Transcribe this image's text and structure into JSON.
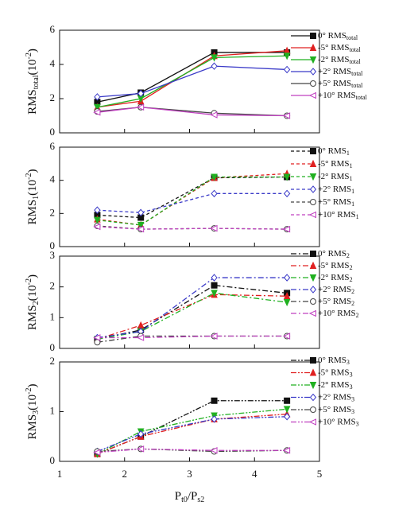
{
  "chart_data": [
    {
      "type": "line",
      "linestyle": "solid",
      "series_subscript": "total",
      "ylabel": [
        "RMS",
        "total",
        "(10",
        "-2",
        ")"
      ],
      "x": [
        1.58,
        2.25,
        3.38,
        4.5
      ],
      "xlim": [
        1,
        5
      ],
      "xticks": [
        1,
        2,
        3,
        4,
        5
      ],
      "ylim": [
        0,
        6
      ],
      "yticks": [
        0,
        2,
        4,
        6
      ],
      "series": [
        {
          "name": "0° RMS",
          "color": "#111111",
          "marker": "square",
          "values": [
            1.8,
            2.35,
            4.7,
            4.7
          ]
        },
        {
          "name": "-5° RMS",
          "color": "#e02020",
          "marker": "triangle-up",
          "values": [
            1.5,
            1.85,
            4.5,
            4.8
          ]
        },
        {
          "name": "-2° RMS",
          "color": "#20b020",
          "marker": "triangle-down",
          "values": [
            1.5,
            2.0,
            4.4,
            4.5
          ]
        },
        {
          "name": "+2° RMS",
          "color": "#3a3ac8",
          "marker": "diamond",
          "values": [
            2.1,
            2.3,
            3.9,
            3.7
          ]
        },
        {
          "name": "+5° RMS",
          "color": "#444444",
          "marker": "circle",
          "values": [
            1.25,
            1.5,
            1.15,
            1.0
          ]
        },
        {
          "name": "+10° RMS",
          "color": "#c040c0",
          "marker": "triangle-left",
          "values": [
            1.2,
            1.5,
            1.05,
            1.0
          ]
        }
      ]
    },
    {
      "type": "line",
      "linestyle": "dashed",
      "series_subscript": "1",
      "ylabel": [
        "RMS",
        "1",
        "(10",
        "-2",
        ")"
      ],
      "x": [
        1.58,
        2.25,
        3.38,
        4.5
      ],
      "xlim": [
        1,
        5
      ],
      "xticks": [
        1,
        2,
        3,
        4,
        5
      ],
      "ylim": [
        0,
        6
      ],
      "yticks": [
        0,
        2,
        4,
        6
      ],
      "series": [
        {
          "name": "0° RMS",
          "color": "#111111",
          "marker": "square",
          "values": [
            1.9,
            1.75,
            4.15,
            4.2
          ]
        },
        {
          "name": "-5° RMS",
          "color": "#e02020",
          "marker": "triangle-up",
          "values": [
            1.65,
            1.3,
            4.15,
            4.4
          ]
        },
        {
          "name": "-2° RMS",
          "color": "#20b020",
          "marker": "triangle-down",
          "values": [
            1.6,
            1.3,
            4.2,
            4.2
          ]
        },
        {
          "name": "+2° RMS",
          "color": "#3a3ac8",
          "marker": "diamond",
          "values": [
            2.2,
            2.05,
            3.2,
            3.2
          ]
        },
        {
          "name": "+5° RMS",
          "color": "#444444",
          "marker": "circle",
          "values": [
            1.25,
            1.05,
            1.1,
            1.05
          ]
        },
        {
          "name": "+10° RMS",
          "color": "#c040c0",
          "marker": "triangle-left",
          "values": [
            1.2,
            1.05,
            1.1,
            1.05
          ]
        }
      ]
    },
    {
      "type": "line",
      "linestyle": "dashdot",
      "series_subscript": "2",
      "ylabel": [
        "RMS",
        "2",
        "(10",
        "-2",
        ")"
      ],
      "x": [
        1.58,
        2.25,
        3.38,
        4.5
      ],
      "xlim": [
        1,
        5
      ],
      "xticks": [
        1,
        2,
        3,
        4,
        5
      ],
      "ylim": [
        0,
        3
      ],
      "yticks": [
        0,
        1,
        2,
        3
      ],
      "series": [
        {
          "name": "0° RMS",
          "color": "#111111",
          "marker": "square",
          "values": [
            0.3,
            0.6,
            2.05,
            1.8
          ]
        },
        {
          "name": "-5° RMS",
          "color": "#e02020",
          "marker": "triangle-up",
          "values": [
            0.3,
            0.75,
            1.75,
            1.7
          ]
        },
        {
          "name": "-2° RMS",
          "color": "#20b020",
          "marker": "triangle-down",
          "values": [
            0.3,
            0.55,
            1.8,
            1.5
          ]
        },
        {
          "name": "+2° RMS",
          "color": "#3a3ac8",
          "marker": "diamond",
          "values": [
            0.35,
            0.55,
            2.3,
            2.3
          ]
        },
        {
          "name": "+5° RMS",
          "color": "#444444",
          "marker": "circle",
          "values": [
            0.2,
            0.4,
            0.4,
            0.4
          ]
        },
        {
          "name": "+10° RMS",
          "color": "#c040c0",
          "marker": "triangle-left",
          "values": [
            0.35,
            0.35,
            0.4,
            0.4
          ]
        }
      ]
    },
    {
      "type": "line",
      "linestyle": "dashdotdot",
      "series_subscript": "3",
      "ylabel": [
        "RMS",
        "3",
        "(10",
        "-2",
        ")"
      ],
      "xlabel": [
        "P",
        "t0",
        "/P",
        "s2"
      ],
      "x": [
        1.58,
        2.25,
        3.38,
        4.5
      ],
      "xlim": [
        1,
        5
      ],
      "xticks": [
        1,
        2,
        3,
        4,
        5
      ],
      "ylim": [
        0,
        2
      ],
      "yticks": [
        0,
        1,
        2
      ],
      "series": [
        {
          "name": "0° RMS",
          "color": "#111111",
          "marker": "square",
          "values": [
            0.15,
            0.5,
            1.22,
            1.22
          ]
        },
        {
          "name": "-5° RMS",
          "color": "#e02020",
          "marker": "triangle-up",
          "values": [
            0.15,
            0.5,
            0.85,
            0.95
          ]
        },
        {
          "name": "-2° RMS",
          "color": "#20b020",
          "marker": "triangle-down",
          "values": [
            0.15,
            0.6,
            0.92,
            1.05
          ]
        },
        {
          "name": "+2° RMS",
          "color": "#3a3ac8",
          "marker": "diamond",
          "values": [
            0.2,
            0.55,
            0.85,
            0.9
          ]
        },
        {
          "name": "+5° RMS",
          "color": "#444444",
          "marker": "circle",
          "values": [
            0.2,
            0.25,
            0.2,
            0.22
          ]
        },
        {
          "name": "+10° RMS",
          "color": "#c040c0",
          "marker": "triangle-left",
          "values": [
            0.18,
            0.25,
            0.22,
            0.22
          ]
        }
      ]
    }
  ]
}
